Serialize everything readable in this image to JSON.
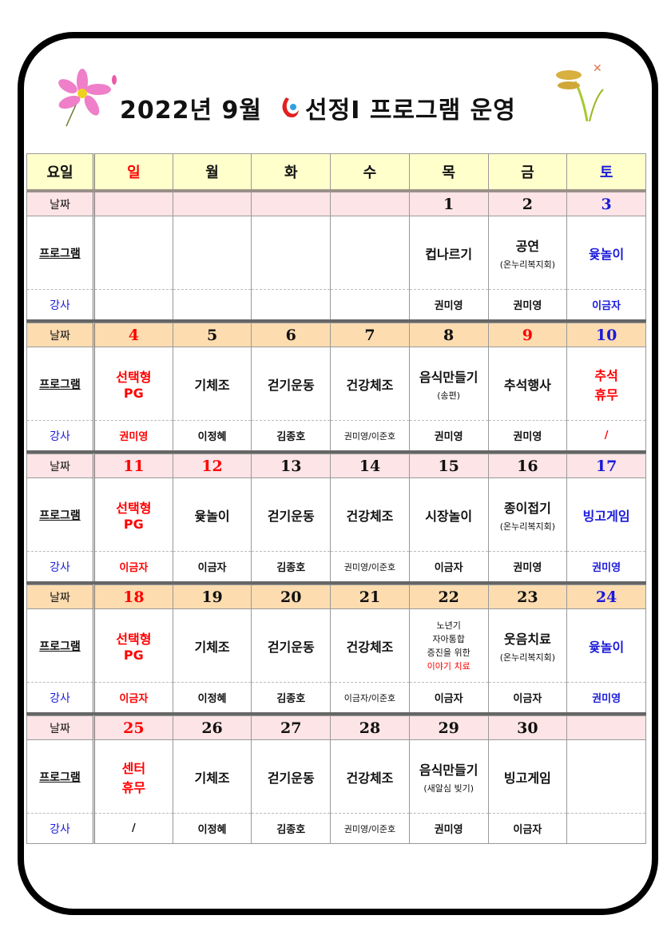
{
  "title": "2022년 9월",
  "title_brand": "선정I 프로그램 운영",
  "colors": {
    "sunday": "#ff0000",
    "saturday": "#1a1adb",
    "header_bg": "#ffffcc",
    "date_pink": "#fde4e6",
    "date_orange": "#fddcb0"
  },
  "header": {
    "label": "요일",
    "days": [
      "일",
      "월",
      "화",
      "수",
      "목",
      "금",
      "토"
    ]
  },
  "row_labels": {
    "date": "날짜",
    "program": "프로그램",
    "teacher": "강사"
  },
  "weeks": [
    {
      "bg": "pink",
      "days": [
        {
          "date": "",
          "program": "",
          "teacher": ""
        },
        {
          "date": "",
          "program": "",
          "teacher": ""
        },
        {
          "date": "",
          "program": "",
          "teacher": ""
        },
        {
          "date": "",
          "program": "",
          "teacher": ""
        },
        {
          "date": "1",
          "program": "컵나르기",
          "teacher": "권미영"
        },
        {
          "date": "2",
          "program": "공연",
          "sub": "(온누리복지회)",
          "teacher": "권미영"
        },
        {
          "date": "3",
          "program": "윷놀이",
          "teacher": "이금자",
          "color": "blue"
        }
      ]
    },
    {
      "bg": "orange",
      "days": [
        {
          "date": "4",
          "program": "선택형\nPG",
          "teacher": "권미영",
          "color": "red"
        },
        {
          "date": "5",
          "program": "기체조",
          "teacher": "이정혜"
        },
        {
          "date": "6",
          "program": "걷기운동",
          "teacher": "김종호"
        },
        {
          "date": "7",
          "program": "건강체조",
          "teacher": "권미영/이준호",
          "teacherSmall": true
        },
        {
          "date": "8",
          "program": "음식만들기",
          "sub": "(송편)",
          "teacher": "권미영"
        },
        {
          "date": "9",
          "program": "추석행사",
          "teacher": "권미영",
          "dateColor": "red"
        },
        {
          "date": "10",
          "program": "추석\n휴무",
          "teacher": "/",
          "color": "red"
        }
      ]
    },
    {
      "bg": "pink",
      "days": [
        {
          "date": "11",
          "program": "선택형\nPG",
          "teacher": "이금자",
          "color": "red"
        },
        {
          "date": "12",
          "program": "윷놀이",
          "teacher": "이금자",
          "dateColor": "red"
        },
        {
          "date": "13",
          "program": "걷기운동",
          "teacher": "김종호"
        },
        {
          "date": "14",
          "program": "건강체조",
          "teacher": "권미영/이준호",
          "teacherSmall": true
        },
        {
          "date": "15",
          "program": "시장놀이",
          "teacher": "이금자"
        },
        {
          "date": "16",
          "program": "종이접기",
          "sub": "(온누리복지회)",
          "teacher": "권미영"
        },
        {
          "date": "17",
          "program": "빙고게임",
          "teacher": "권미영",
          "color": "blue"
        }
      ]
    },
    {
      "bg": "orange",
      "days": [
        {
          "date": "18",
          "program": "선택형\nPG",
          "teacher": "이금자",
          "color": "red"
        },
        {
          "date": "19",
          "program": "기체조",
          "teacher": "이정혜"
        },
        {
          "date": "20",
          "program": "걷기운동",
          "teacher": "김종호"
        },
        {
          "date": "21",
          "program": "건강체조",
          "teacher": "이금자/이준호",
          "teacherSmall": true
        },
        {
          "date": "22",
          "program": "",
          "lines": [
            "노년기",
            "자아통합",
            "증진을 위한"
          ],
          "redline": "이야기 치료",
          "teacher": "이금자"
        },
        {
          "date": "23",
          "program": "웃음치료",
          "sub": "(온누리복지회)",
          "teacher": "이금자"
        },
        {
          "date": "24",
          "program": "윷놀이",
          "teacher": "권미영",
          "color": "blue"
        }
      ]
    },
    {
      "bg": "pink",
      "days": [
        {
          "date": "25",
          "program": "센터\n휴무",
          "teacher": "/",
          "color": "red",
          "teacherColor": "black"
        },
        {
          "date": "26",
          "program": "기체조",
          "teacher": "이정혜"
        },
        {
          "date": "27",
          "program": "걷기운동",
          "teacher": "김종호"
        },
        {
          "date": "28",
          "program": "건강체조",
          "teacher": "권미영/이준호",
          "teacherSmall": true
        },
        {
          "date": "29",
          "program": "음식만들기",
          "sub": "(새알심 빚기)",
          "teacher": "권미영"
        },
        {
          "date": "30",
          "program": "빙고게임",
          "teacher": "이금자"
        },
        {
          "date": "",
          "program": "",
          "teacher": ""
        }
      ]
    }
  ]
}
